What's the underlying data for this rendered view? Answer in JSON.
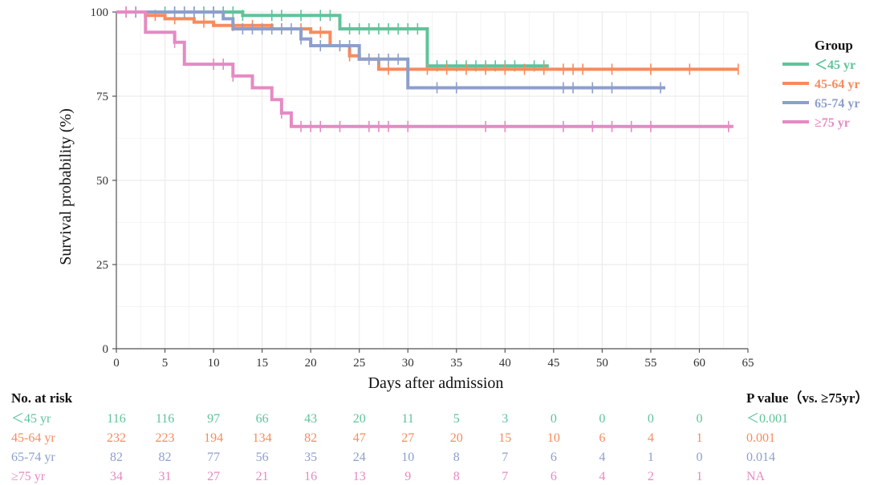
{
  "colors": {
    "lt45": "#5ec49a",
    "a4564": "#f78b5e",
    "a6574": "#8d9fcb",
    "ge75": "#e58ac3",
    "grid": "#ececec",
    "axis": "#555555"
  },
  "chart_data": {
    "type": "line",
    "subtype": "kaplan-meier",
    "xlabel": "Days after admission",
    "ylabel": "Survival probability (%)",
    "xlim": [
      0,
      65
    ],
    "ylim": [
      0,
      100
    ],
    "x_ticks": [
      0,
      5,
      10,
      15,
      20,
      25,
      30,
      35,
      40,
      45,
      50,
      55,
      60,
      65
    ],
    "y_ticks": [
      0,
      25,
      50,
      75,
      100
    ],
    "grid": true,
    "legend": {
      "title": "Group",
      "position": "right"
    },
    "series": [
      {
        "name": "＜45 yr",
        "color_key": "lt45",
        "steps": [
          [
            0,
            100
          ],
          [
            13,
            99
          ],
          [
            23,
            95
          ],
          [
            32,
            84
          ],
          [
            44.5,
            84
          ]
        ],
        "censors": [
          5,
          6,
          7,
          8,
          9,
          10,
          11,
          12,
          13,
          16,
          17,
          19,
          21,
          22,
          24,
          25,
          26,
          27,
          28,
          29,
          30,
          31,
          33,
          34,
          35,
          36,
          37,
          38,
          39,
          40,
          41,
          43,
          44
        ]
      },
      {
        "name": "45-64 yr",
        "color_key": "a4564",
        "steps": [
          [
            0,
            100
          ],
          [
            3,
            99
          ],
          [
            5,
            98
          ],
          [
            8,
            97
          ],
          [
            10,
            96
          ],
          [
            16,
            95
          ],
          [
            20,
            94
          ],
          [
            22,
            90
          ],
          [
            24,
            87
          ],
          [
            25,
            86
          ],
          [
            27,
            83
          ],
          [
            64,
            83
          ]
        ],
        "censors": [
          1,
          2,
          4,
          6,
          9,
          12,
          14,
          17,
          19,
          21,
          23,
          24,
          26,
          28,
          30,
          32,
          34,
          36,
          38,
          40,
          42,
          44,
          46,
          47,
          48,
          51,
          55,
          59,
          64
        ]
      },
      {
        "name": "65-74 yr",
        "color_key": "a6574",
        "steps": [
          [
            0,
            100
          ],
          [
            11,
            98
          ],
          [
            12,
            95
          ],
          [
            19,
            92
          ],
          [
            20,
            90
          ],
          [
            25,
            86
          ],
          [
            30,
            77.5
          ],
          [
            56.5,
            77.5
          ]
        ],
        "censors": [
          2,
          6,
          7,
          8,
          10,
          13,
          14,
          15,
          16,
          17,
          18,
          19,
          21,
          23,
          24,
          26,
          27,
          28,
          29,
          33,
          35,
          46,
          47,
          49,
          51,
          56
        ]
      },
      {
        "name": "≥75 yr",
        "color_key": "ge75",
        "steps": [
          [
            0,
            100
          ],
          [
            3,
            94
          ],
          [
            6,
            91
          ],
          [
            7,
            84.5
          ],
          [
            12,
            81
          ],
          [
            14,
            77.5
          ],
          [
            16,
            74
          ],
          [
            17,
            70
          ],
          [
            18,
            66
          ],
          [
            63.5,
            66
          ]
        ],
        "censors": [
          1,
          6,
          10,
          11,
          12,
          17,
          19,
          20,
          21,
          23,
          26,
          27,
          28,
          30,
          38,
          40,
          46,
          49,
          51,
          53,
          55,
          63
        ]
      }
    ]
  },
  "risk_table": {
    "header": "No. at risk",
    "pvalue_header": "P value（vs. ≥75yr）",
    "rows": [
      {
        "label": "＜45 yr",
        "color_key": "lt45",
        "counts": [
          "116",
          "116",
          "97",
          "66",
          "43",
          "20",
          "11",
          "5",
          "3",
          "0",
          "0",
          "0",
          "0"
        ],
        "pvalue": "＜0.001"
      },
      {
        "label": "45-64 yr",
        "color_key": "a4564",
        "counts": [
          "232",
          "223",
          "194",
          "134",
          "82",
          "47",
          "27",
          "20",
          "15",
          "10",
          "6",
          "4",
          "1"
        ],
        "pvalue": "0.001"
      },
      {
        "label": "65-74 yr",
        "color_key": "a6574",
        "counts": [
          "82",
          "82",
          "77",
          "56",
          "35",
          "24",
          "10",
          "8",
          "7",
          "6",
          "4",
          "1",
          "0"
        ],
        "pvalue": "0.014"
      },
      {
        "label": "≥75 yr",
        "color_key": "ge75",
        "counts": [
          "34",
          "31",
          "27",
          "21",
          "16",
          "13",
          "9",
          "8",
          "7",
          "6",
          "4",
          "2",
          "1"
        ],
        "pvalue": "NA"
      }
    ]
  }
}
